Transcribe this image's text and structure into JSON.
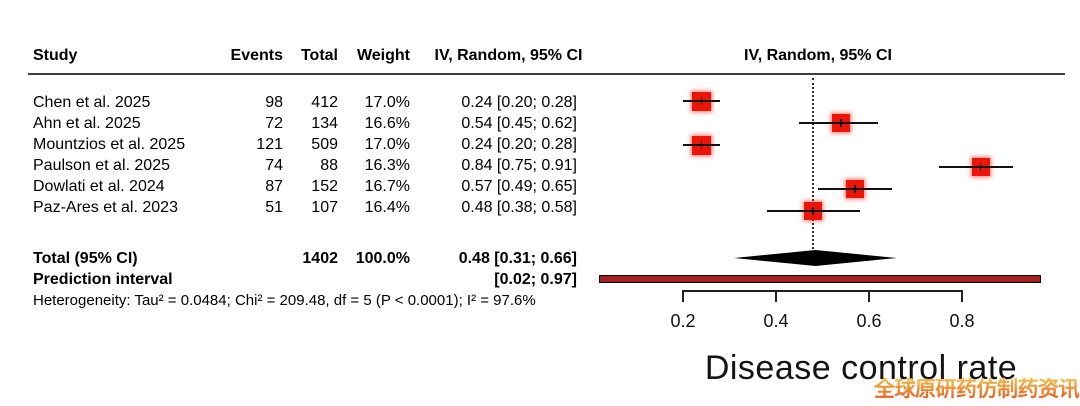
{
  "table": {
    "headers": {
      "study": "Study",
      "events": "Events",
      "total": "Total",
      "weight": "Weight",
      "ci": "IV, Random, 95% CI"
    },
    "rows": [
      {
        "study": "Chen et al. 2025",
        "events": "98",
        "total": "412",
        "weight": "17.0%",
        "ci": "0.24 [0.20; 0.28]"
      },
      {
        "study": "Ahn et al. 2025",
        "events": "72",
        "total": "134",
        "weight": "16.6%",
        "ci": "0.54 [0.45; 0.62]"
      },
      {
        "study": "Mountzios et al. 2025",
        "events": "121",
        "total": "509",
        "weight": "17.0%",
        "ci": "0.24 [0.20; 0.28]"
      },
      {
        "study": "Paulson et al. 2025",
        "events": "74",
        "total": "88",
        "weight": "16.3%",
        "ci": "0.84 [0.75; 0.91]"
      },
      {
        "study": "Dowlati et al. 2024",
        "events": "87",
        "total": "152",
        "weight": "16.7%",
        "ci": "0.57 [0.49; 0.65]"
      },
      {
        "study": "Paz-Ares et al. 2023",
        "events": "51",
        "total": "107",
        "weight": "16.4%",
        "ci": "0.48 [0.38; 0.58]"
      }
    ],
    "total_row": {
      "label": "Total (95% CI)",
      "total": "1402",
      "weight": "100.0%",
      "ci": "0.48 [0.31; 0.66]"
    },
    "prediction_row": {
      "label": "Prediction interval",
      "ci": "[0.02; 0.97]"
    },
    "heterogeneity": "Heterogeneity: Tau² = 0.0484; Chi² = 209.48, df = 5 (P < 0.0001); I² = 97.6%"
  },
  "plot": {
    "header": "IV, Random, 95% CI"
  },
  "chart_data": {
    "type": "forest",
    "title": "Disease control rate",
    "x_ticks": [
      0.2,
      0.4,
      0.6,
      0.8
    ],
    "x_range_shown": [
      0.2,
      0.8
    ],
    "studies": [
      {
        "label": "Chen et al. 2025",
        "events": 98,
        "total": 412,
        "weight_pct": 17.0,
        "estimate": 0.24,
        "ci_low": 0.2,
        "ci_high": 0.28
      },
      {
        "label": "Ahn et al. 2025",
        "events": 72,
        "total": 134,
        "weight_pct": 16.6,
        "estimate": 0.54,
        "ci_low": 0.45,
        "ci_high": 0.62
      },
      {
        "label": "Mountzios et al. 2025",
        "events": 121,
        "total": 509,
        "weight_pct": 17.0,
        "estimate": 0.24,
        "ci_low": 0.2,
        "ci_high": 0.28
      },
      {
        "label": "Paulson et al. 2025",
        "events": 74,
        "total": 88,
        "weight_pct": 16.3,
        "estimate": 0.84,
        "ci_low": 0.75,
        "ci_high": 0.91
      },
      {
        "label": "Dowlati et al. 2024",
        "events": 87,
        "total": 152,
        "weight_pct": 16.7,
        "estimate": 0.57,
        "ci_low": 0.49,
        "ci_high": 0.65
      },
      {
        "label": "Paz-Ares et al. 2023",
        "events": 51,
        "total": 107,
        "weight_pct": 16.4,
        "estimate": 0.48,
        "ci_low": 0.38,
        "ci_high": 0.58
      }
    ],
    "overall": {
      "label": "Total (95% CI)",
      "total": 1402,
      "weight_pct": 100.0,
      "estimate": 0.48,
      "ci_low": 0.31,
      "ci_high": 0.66
    },
    "prediction_interval": {
      "low": 0.02,
      "high": 0.97
    },
    "heterogeneity": {
      "tau2": 0.0484,
      "chi2": 209.48,
      "df": 5,
      "p": "< 0.0001",
      "i2_pct": 97.6
    },
    "reference_line": 0.48,
    "colors": {
      "square": "#ee1408",
      "square_glow": "rgba(242,40,25,0.55)",
      "diamond": "#000000",
      "prediction_bar": "#a12121",
      "line": "#111111",
      "watermark_top": "#f6c94e",
      "watermark_bottom": "#e8581c"
    }
  },
  "watermark": "全球原研药仿制药资讯"
}
